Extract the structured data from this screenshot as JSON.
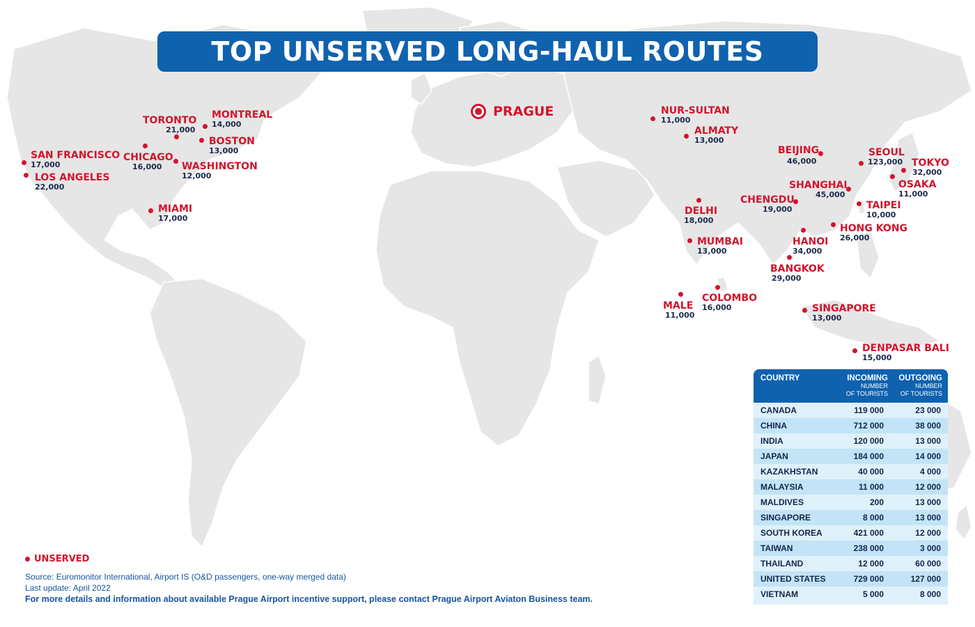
{
  "title": "TOP UNSERVED LONG-HAUL ROUTES",
  "origin": "PRAGUE",
  "colors": {
    "accent_blue": "#0f62ae",
    "unserved_red": "#d3142b",
    "land": "#e6e6e6"
  },
  "cities": [
    {
      "name": "TORONTO",
      "value": "21,000"
    },
    {
      "name": "MONTREAL",
      "value": "14,000"
    },
    {
      "name": "BOSTON",
      "value": "13,000"
    },
    {
      "name": "CHICAGO",
      "value": "16,000"
    },
    {
      "name": "WASHINGTON",
      "value": "12,000"
    },
    {
      "name": "SAN FRANCISCO",
      "value": "17,000"
    },
    {
      "name": "LOS ANGELES",
      "value": "22,000"
    },
    {
      "name": "MIAMI",
      "value": "17,000"
    },
    {
      "name": "NUR-SULTAN",
      "value": "11,000"
    },
    {
      "name": "ALMATY",
      "value": "13,000"
    },
    {
      "name": "BEIJING",
      "value": "46,000"
    },
    {
      "name": "SEOUL",
      "value": "123,000"
    },
    {
      "name": "TOKYO",
      "value": "32,000"
    },
    {
      "name": "OSAKA",
      "value": "11,000"
    },
    {
      "name": "SHANGHAI",
      "value": "45,000"
    },
    {
      "name": "CHENGDU",
      "value": "19,000"
    },
    {
      "name": "DELHI",
      "value": "18,000"
    },
    {
      "name": "TAIPEI",
      "value": "10,000"
    },
    {
      "name": "HONG KONG",
      "value": "26,000"
    },
    {
      "name": "HANOI",
      "value": "34,000"
    },
    {
      "name": "MUMBAI",
      "value": "13,000"
    },
    {
      "name": "BANGKOK",
      "value": "29,000"
    },
    {
      "name": "COLOMBO",
      "value": "16,000"
    },
    {
      "name": "MALE",
      "value": "11,000"
    },
    {
      "name": "SINGAPORE",
      "value": "13,000"
    },
    {
      "name": "DENPASAR BALI",
      "value": "15,000"
    }
  ],
  "legend": "UNSERVED",
  "footer": {
    "source": "Source: Euromonitor International, Airport IS (O&D passengers, one-way merged data)",
    "last_update": "Last update: April 2022",
    "contact": "For more details and information about available Prague Airport incentive support, please contact Prague Airport Aviaton Business team."
  },
  "table": {
    "col_country": "COUNTRY",
    "col_incoming": "INCOMING",
    "col_outgoing": "OUTGOING",
    "sub_line1": "NUMBER",
    "sub_line2": "OF TOURISTS",
    "rows": [
      {
        "country": "CANADA",
        "incoming": "119 000",
        "outgoing": "23 000"
      },
      {
        "country": "CHINA",
        "incoming": "712 000",
        "outgoing": "38 000"
      },
      {
        "country": "INDIA",
        "incoming": "120 000",
        "outgoing": "13 000"
      },
      {
        "country": "JAPAN",
        "incoming": "184 000",
        "outgoing": "14 000"
      },
      {
        "country": "KAZAKHSTAN",
        "incoming": "40 000",
        "outgoing": "4 000"
      },
      {
        "country": "MALAYSIA",
        "incoming": "11 000",
        "outgoing": "12 000"
      },
      {
        "country": "MALDIVES",
        "incoming": "200",
        "outgoing": "13 000"
      },
      {
        "country": "SINGAPORE",
        "incoming": "8 000",
        "outgoing": "13 000"
      },
      {
        "country": "SOUTH KOREA",
        "incoming": "421 000",
        "outgoing": "12 000"
      },
      {
        "country": "TAIWAN",
        "incoming": "238 000",
        "outgoing": "3 000"
      },
      {
        "country": "THAILAND",
        "incoming": "12 000",
        "outgoing": "60 000"
      },
      {
        "country": "UNITED STATES",
        "incoming": "729 000",
        "outgoing": "127 000"
      },
      {
        "country": "VIETNAM",
        "incoming": "5 000",
        "outgoing": "8 000"
      }
    ]
  }
}
